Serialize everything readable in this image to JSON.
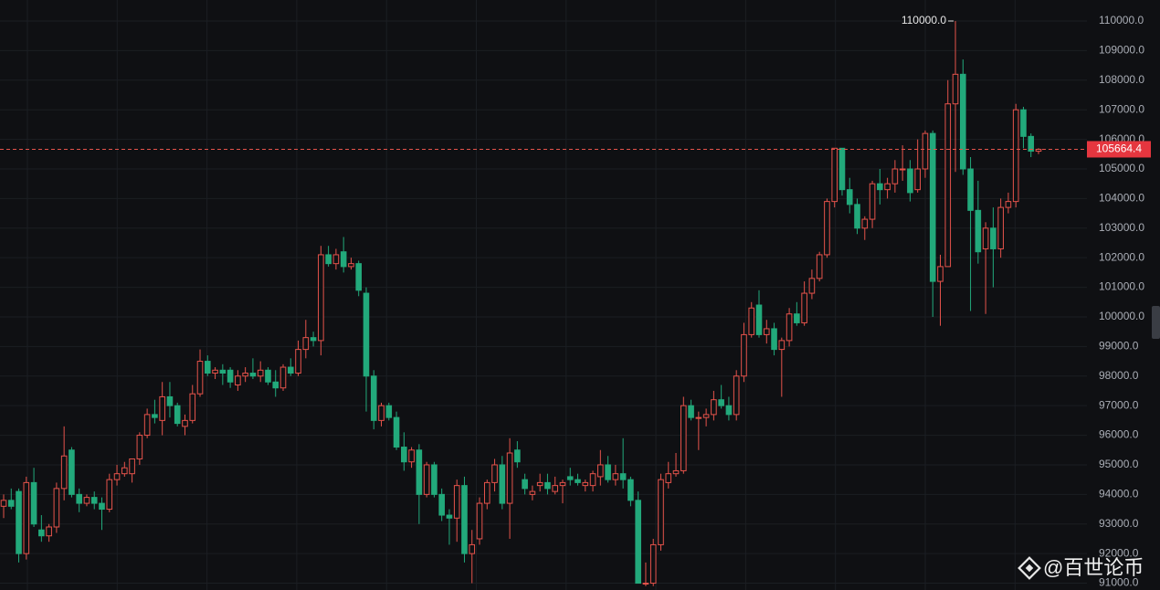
{
  "chart_data": {
    "type": "candlestick",
    "up_color": "#e5534b",
    "down_color": "#22a97b",
    "grid": true,
    "ylim": [
      90770,
      110710
    ],
    "yticks": [
      {
        "value": 91000,
        "label": "91000.0"
      },
      {
        "value": 92000,
        "label": "92000.0"
      },
      {
        "value": 93000,
        "label": "93000.0"
      },
      {
        "value": 94000,
        "label": "94000.0"
      },
      {
        "value": 95000,
        "label": "95000.0"
      },
      {
        "value": 96000,
        "label": "96000.0"
      },
      {
        "value": 97000,
        "label": "97000.0"
      },
      {
        "value": 98000,
        "label": "98000.0"
      },
      {
        "value": 99000,
        "label": "99000.0"
      },
      {
        "value": 100000,
        "label": "100000.0"
      },
      {
        "value": 101000,
        "label": "101000.0"
      },
      {
        "value": 102000,
        "label": "102000.0"
      },
      {
        "value": 103000,
        "label": "103000.0"
      },
      {
        "value": 104000,
        "label": "104000.0"
      },
      {
        "value": 105000,
        "label": "105000.0"
      },
      {
        "value": 106000,
        "label": "106000.0"
      },
      {
        "value": 107000,
        "label": "107000.0"
      },
      {
        "value": 108000,
        "label": "108000.0"
      },
      {
        "value": 109000,
        "label": "109000.0"
      },
      {
        "value": 110000,
        "label": "110000.0"
      }
    ],
    "current_price": 105664.4,
    "max_marker": {
      "value": 110000,
      "label": "110000.0"
    },
    "watermark": "@百世论币",
    "ohlc": [
      [
        93600,
        94000,
        93200,
        93800
      ],
      [
        93800,
        94200,
        93500,
        93600
      ],
      [
        94100,
        94200,
        91700,
        92000
      ],
      [
        92000,
        94600,
        91800,
        94400
      ],
      [
        94400,
        94900,
        92900,
        93000
      ],
      [
        92800,
        93300,
        92400,
        92600
      ],
      [
        92600,
        93000,
        92400,
        92900
      ],
      [
        92900,
        94400,
        92700,
        94200
      ],
      [
        94200,
        96300,
        93800,
        95300
      ],
      [
        95500,
        95600,
        93900,
        94000
      ],
      [
        94000,
        94200,
        93400,
        93700
      ],
      [
        93700,
        94000,
        93600,
        93900
      ],
      [
        93900,
        94100,
        93500,
        93700
      ],
      [
        93700,
        93900,
        92800,
        93500
      ],
      [
        93500,
        94700,
        93400,
        94500
      ],
      [
        94500,
        95000,
        94300,
        94700
      ],
      [
        94700,
        95100,
        94600,
        94900
      ],
      [
        94700,
        95200,
        94400,
        95200
      ],
      [
        95200,
        96100,
        95000,
        96000
      ],
      [
        96000,
        96900,
        95900,
        96700
      ],
      [
        96700,
        97200,
        96400,
        96600
      ],
      [
        96500,
        97800,
        96000,
        97300
      ],
      [
        97300,
        97800,
        96600,
        97000
      ],
      [
        97000,
        97100,
        96300,
        96400
      ],
      [
        96300,
        96700,
        96000,
        96500
      ],
      [
        96500,
        97700,
        96400,
        97400
      ],
      [
        97400,
        98900,
        97300,
        98500
      ],
      [
        98500,
        98700,
        98000,
        98100
      ],
      [
        98100,
        98300,
        97900,
        98200
      ],
      [
        98200,
        98400,
        97700,
        98100
      ],
      [
        98200,
        98300,
        97600,
        97800
      ],
      [
        97700,
        98200,
        97500,
        98000
      ],
      [
        98000,
        98300,
        97800,
        98100
      ],
      [
        98100,
        98600,
        97900,
        98000
      ],
      [
        98000,
        98500,
        97800,
        98200
      ],
      [
        98200,
        98300,
        97700,
        97800
      ],
      [
        97800,
        98200,
        97300,
        97600
      ],
      [
        97600,
        98400,
        97500,
        98300
      ],
      [
        98300,
        98600,
        98000,
        98100
      ],
      [
        98100,
        99200,
        98000,
        98900
      ],
      [
        98900,
        99900,
        98600,
        99300
      ],
      [
        99300,
        99500,
        99000,
        99200
      ],
      [
        99200,
        102400,
        98700,
        102100
      ],
      [
        102100,
        102400,
        101700,
        101800
      ],
      [
        101800,
        102300,
        101600,
        102100
      ],
      [
        102200,
        102700,
        101500,
        101700
      ],
      [
        101700,
        102000,
        101600,
        101800
      ],
      [
        101800,
        101900,
        100700,
        100900
      ],
      [
        100800,
        101000,
        96800,
        98000
      ],
      [
        98000,
        98200,
        96200,
        96500
      ],
      [
        96500,
        97100,
        96300,
        97000
      ],
      [
        97000,
        97100,
        96500,
        96600
      ],
      [
        96600,
        96800,
        95500,
        95600
      ],
      [
        95600,
        96100,
        94800,
        95100
      ],
      [
        95100,
        95600,
        94900,
        95500
      ],
      [
        95500,
        95700,
        93000,
        94000
      ],
      [
        94000,
        95100,
        93900,
        95000
      ],
      [
        95000,
        95100,
        93900,
        94000
      ],
      [
        94000,
        94200,
        93100,
        93300
      ],
      [
        93300,
        93500,
        92300,
        93200
      ],
      [
        93200,
        94500,
        92400,
        94300
      ],
      [
        94300,
        94600,
        91700,
        92000
      ],
      [
        92000,
        92800,
        91000,
        92300
      ],
      [
        92500,
        93900,
        92300,
        93700
      ],
      [
        93700,
        94500,
        93500,
        94400
      ],
      [
        94400,
        95200,
        94100,
        95000
      ],
      [
        95000,
        95300,
        93500,
        93700
      ],
      [
        93700,
        95900,
        92500,
        95400
      ],
      [
        95500,
        95800,
        94900,
        95100
      ],
      [
        94500,
        94700,
        94000,
        94200
      ],
      [
        94000,
        94300,
        93800,
        94100
      ],
      [
        94300,
        94700,
        94100,
        94400
      ],
      [
        94400,
        94700,
        94000,
        94200
      ],
      [
        94100,
        94600,
        94000,
        94300
      ],
      [
        94300,
        94500,
        93700,
        94400
      ],
      [
        94600,
        94900,
        94300,
        94500
      ],
      [
        94500,
        94700,
        94300,
        94400
      ],
      [
        94300,
        94500,
        94100,
        94400
      ],
      [
        94300,
        94800,
        94100,
        94700
      ],
      [
        94600,
        95500,
        94300,
        95000
      ],
      [
        95000,
        95300,
        94400,
        94500
      ],
      [
        94500,
        95000,
        94300,
        94700
      ],
      [
        94700,
        95900,
        94200,
        94500
      ],
      [
        94500,
        94600,
        93600,
        93800
      ],
      [
        93800,
        94100,
        91000,
        91000
      ],
      [
        91000,
        91700,
        90900,
        91000
      ],
      [
        91000,
        92500,
        90900,
        92300
      ],
      [
        92300,
        94700,
        92100,
        94500
      ],
      [
        94400,
        95100,
        94200,
        94700
      ],
      [
        94700,
        95400,
        94600,
        94800
      ],
      [
        94800,
        97300,
        94700,
        97000
      ],
      [
        97000,
        97200,
        96500,
        96600
      ],
      [
        96600,
        96800,
        95500,
        96600
      ],
      [
        96600,
        96900,
        96300,
        96700
      ],
      [
        96700,
        97500,
        96500,
        97200
      ],
      [
        97200,
        97700,
        96900,
        97000
      ],
      [
        97000,
        97300,
        96500,
        96700
      ],
      [
        96700,
        98200,
        96500,
        98000
      ],
      [
        98000,
        99800,
        97800,
        99400
      ],
      [
        99400,
        100500,
        99300,
        100300
      ],
      [
        100400,
        100900,
        99300,
        99400
      ],
      [
        99400,
        99900,
        99100,
        99600
      ],
      [
        99600,
        99800,
        98700,
        98900
      ],
      [
        98900,
        99300,
        97300,
        99200
      ],
      [
        99200,
        100300,
        99000,
        100100
      ],
      [
        100100,
        100500,
        99700,
        99800
      ],
      [
        99800,
        101200,
        99700,
        100800
      ],
      [
        100800,
        101600,
        100600,
        101300
      ],
      [
        101300,
        102200,
        101200,
        102100
      ],
      [
        102100,
        104000,
        102000,
        103900
      ],
      [
        103900,
        105700,
        103700,
        105700
      ],
      [
        105700,
        105700,
        104100,
        104300
      ],
      [
        104300,
        104700,
        103500,
        103800
      ],
      [
        103800,
        104000,
        102800,
        103000
      ],
      [
        103000,
        103400,
        102600,
        103300
      ],
      [
        103300,
        104600,
        103000,
        104500
      ],
      [
        104500,
        105000,
        103800,
        104300
      ],
      [
        104300,
        104700,
        104000,
        104500
      ],
      [
        104500,
        105300,
        104200,
        105000
      ],
      [
        105000,
        105800,
        104600,
        105000
      ],
      [
        105000,
        105300,
        103900,
        104200
      ],
      [
        104300,
        106000,
        104200,
        105000
      ],
      [
        105000,
        106300,
        104700,
        106200
      ],
      [
        106200,
        106300,
        100000,
        101200
      ],
      [
        101200,
        102100,
        99700,
        101700
      ],
      [
        101700,
        108000,
        101700,
        107200
      ],
      [
        107200,
        110000,
        104900,
        108200
      ],
      [
        108200,
        108700,
        104800,
        105000
      ],
      [
        105000,
        105400,
        100200,
        103600
      ],
      [
        103600,
        104600,
        101800,
        102200
      ],
      [
        102300,
        103200,
        100100,
        103000
      ],
      [
        103000,
        103700,
        101000,
        102300
      ],
      [
        102300,
        104000,
        102000,
        103700
      ],
      [
        103700,
        104200,
        103500,
        103900
      ],
      [
        103900,
        107200,
        103700,
        107000
      ],
      [
        107000,
        107100,
        105700,
        106100
      ],
      [
        106100,
        106200,
        105400,
        105600
      ],
      [
        105600,
        105700,
        105500,
        105664.4
      ]
    ]
  }
}
